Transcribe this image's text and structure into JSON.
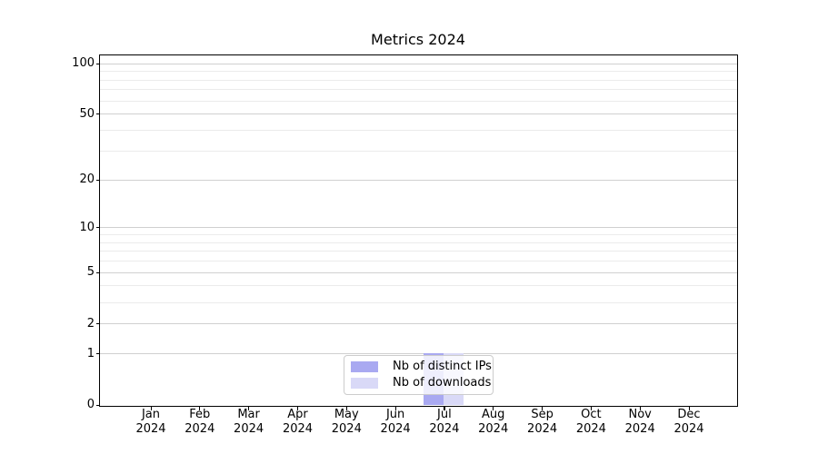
{
  "chart_data": {
    "type": "bar",
    "title": "Metrics 2024",
    "categories": [
      "Jan 2024",
      "Feb 2024",
      "Mar 2024",
      "Apr 2024",
      "May 2024",
      "Jun 2024",
      "Jul 2024",
      "Aug 2024",
      "Sep 2024",
      "Oct 2024",
      "Nov 2024",
      "Dec 2024"
    ],
    "series": [
      {
        "name": "Nb of distinct IPs",
        "color": "#a9a9f1",
        "values": [
          0,
          0,
          0,
          0,
          0,
          0,
          1,
          0,
          0,
          0,
          0,
          0
        ]
      },
      {
        "name": "Nb of downloads",
        "color": "#d9d9f7",
        "values": [
          0,
          0,
          0,
          0,
          0,
          0,
          1,
          0,
          0,
          0,
          0,
          0
        ]
      }
    ],
    "xlabel": "",
    "ylabel": "",
    "yscale": "log1p",
    "ylim": [
      0,
      112
    ],
    "yticks_major": [
      0,
      1,
      2,
      5,
      10,
      20,
      50,
      100
    ],
    "yticks_minor": [
      3,
      4,
      6,
      7,
      8,
      9,
      30,
      40,
      60,
      70,
      80,
      90
    ],
    "grid": "both",
    "legend_position": "lower center"
  },
  "colors": {
    "axis": "#000000",
    "grid_major": "#d0d0d0",
    "grid_minor": "#ebebeb",
    "legend_border": "#cccccc",
    "background": "#ffffff"
  }
}
